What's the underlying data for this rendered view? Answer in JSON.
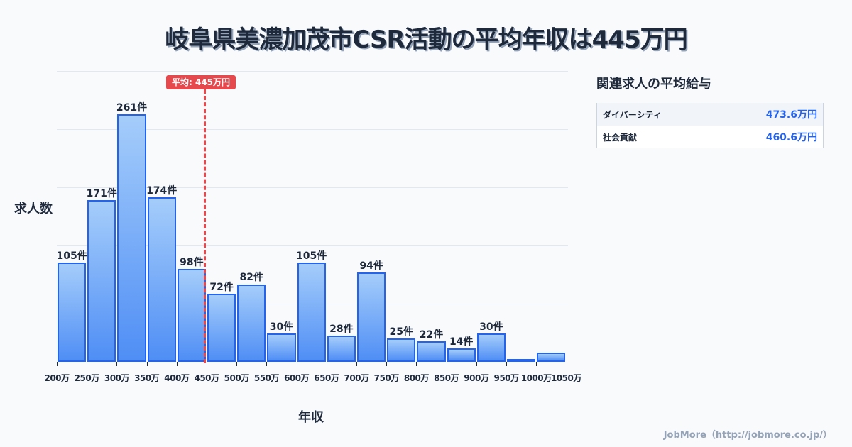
{
  "title": "岐阜県美濃加茂市CSR活動の平均年収は445万円",
  "average_badge": "平均: 445万円",
  "y_axis_label": "求人数",
  "x_axis_label": "年収",
  "side_panel": {
    "title": "関連求人の平均給与",
    "rows": [
      {
        "name": "ダイバーシティ",
        "value": "473.6万円"
      },
      {
        "name": "社会貢献",
        "value": "460.6万円"
      }
    ]
  },
  "footer": "JobMore（http://jobmore.co.jp/）",
  "colors": {
    "bar_fill_top": "#a5cdfb",
    "bar_fill_bottom": "#4f8ef5",
    "bar_border": "#2563eb",
    "average_line": "#e5484d",
    "side_value": "#2563eb"
  },
  "bars": [
    {
      "label": "105件"
    },
    {
      "label": "171件"
    },
    {
      "label": "261件"
    },
    {
      "label": "174件"
    },
    {
      "label": "98件"
    },
    {
      "label": "72件"
    },
    {
      "label": "82件"
    },
    {
      "label": "30件"
    },
    {
      "label": "105件"
    },
    {
      "label": "28件"
    },
    {
      "label": "94件"
    },
    {
      "label": "25件"
    },
    {
      "label": "22件"
    },
    {
      "label": "14件"
    },
    {
      "label": "30件"
    },
    {
      "label": ""
    },
    {
      "label": ""
    }
  ],
  "ticks": [
    "200万",
    "250万",
    "300万",
    "350万",
    "400万",
    "450万",
    "500万",
    "550万",
    "600万",
    "650万",
    "700万",
    "750万",
    "800万",
    "850万",
    "900万",
    "950万",
    "1000万",
    "1050万"
  ],
  "chart_data": {
    "type": "bar",
    "title": "岐阜県美濃加茂市CSR活動の平均年収は445万円",
    "xlabel": "年収",
    "ylabel": "求人数",
    "categories": [
      "200-250万",
      "250-300万",
      "300-350万",
      "350-400万",
      "400-450万",
      "450-500万",
      "500-550万",
      "550-600万",
      "600-650万",
      "650-700万",
      "700-750万",
      "750-800万",
      "800-850万",
      "850-900万",
      "900-950万",
      "950-1000万",
      "1000-1050万"
    ],
    "values": [
      105,
      171,
      261,
      174,
      98,
      72,
      82,
      30,
      105,
      28,
      94,
      25,
      22,
      14,
      30,
      2,
      10
    ],
    "value_labels": [
      "105件",
      "171件",
      "261件",
      "174件",
      "98件",
      "72件",
      "82件",
      "30件",
      "105件",
      "28件",
      "94件",
      "25件",
      "22件",
      "14件",
      "30件",
      "",
      ""
    ],
    "x_tick_labels": [
      "200万",
      "250万",
      "300万",
      "350万",
      "400万",
      "450万",
      "500万",
      "550万",
      "600万",
      "650万",
      "700万",
      "750万",
      "800万",
      "850万",
      "900万",
      "950万",
      "1000万",
      "1050万"
    ],
    "ylim": [
      0,
      307
    ],
    "grid": true,
    "annotations": [
      {
        "type": "vline",
        "x": "445万",
        "label": "平均: 445万円",
        "color": "#e5484d"
      }
    ]
  }
}
